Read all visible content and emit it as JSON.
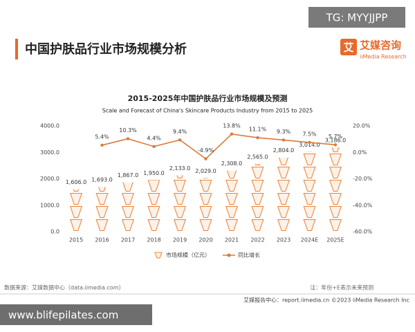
{
  "watermark_top": "TG: MYYJJPP",
  "header": {
    "title": "中国护肤品行业市场规模分析",
    "logo": "艾媒咨询",
    "logo_sub": "iiMedia Research"
  },
  "chart_data": {
    "type": "bar-line",
    "title": "2015-2025年中国护肤品行业市场规模及预测",
    "subtitle": "Scale and Forecast of China's Skincare Products Industry from 2015 to 2025",
    "categories": [
      "2015",
      "2016",
      "2017",
      "2018",
      "2019",
      "2020",
      "2021",
      "2022",
      "2023",
      "2024E",
      "2025E"
    ],
    "series": [
      {
        "name": "市场规模（亿元）",
        "color": "#e8833a",
        "values": [
          1606.0,
          1693.0,
          1867.0,
          1950.0,
          2133.0,
          2029.0,
          2308.0,
          2565.0,
          2804.0,
          3014.0,
          3186.0
        ],
        "value_labels": [
          "1,606.0",
          "1,693.0",
          "1,867.0",
          "1,950.0",
          "2,133.0",
          "2,029.0",
          "2,308.0",
          "2,565.0",
          "2,804.0",
          "3,014.0",
          "3,186.0"
        ]
      },
      {
        "name": "同比增长",
        "color": "#d9793a",
        "axis": "y2",
        "values": [
          null,
          5.4,
          10.3,
          4.4,
          9.4,
          -4.9,
          13.8,
          11.1,
          9.3,
          7.5,
          5.7
        ],
        "value_labels": [
          null,
          "5.4%",
          "10.3%",
          "4.4%",
          "9.4%",
          "-4.9%",
          "13.8%",
          "11.1%",
          "9.3%",
          "7.5%",
          "5.7%"
        ]
      }
    ],
    "ylim": [
      0,
      4000
    ],
    "yticks": [
      {
        "value": 0,
        "label": "0.0"
      },
      {
        "value": 1000,
        "label": "1000.0"
      },
      {
        "value": 2000,
        "label": "2000.0"
      },
      {
        "value": 3000,
        "label": "3000.0"
      },
      {
        "value": 4000,
        "label": "4000.0"
      }
    ],
    "y2lim": [
      -60,
      20
    ],
    "y2ticks": [
      {
        "value": -60,
        "label": "-60.0%"
      },
      {
        "value": -40,
        "label": "-40.0%"
      },
      {
        "value": -20,
        "label": "-20.0%"
      },
      {
        "value": 0,
        "label": "0.0%"
      },
      {
        "value": 20,
        "label": "20.0%"
      }
    ]
  },
  "footer": {
    "source": "数据来源：艾媒数据中心（data.iimedia.com）",
    "note": "注：年份+E表示未来预测",
    "report": "艾媒报告中心：report.iimedia.cn",
    "copyright": "©2023  iiMedia Research  Inc"
  },
  "watermark_bottom": "www.blifepilates.com"
}
